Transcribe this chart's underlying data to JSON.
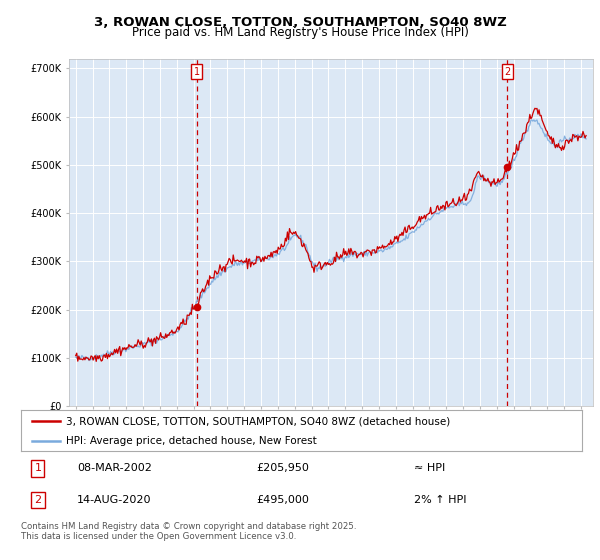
{
  "title_line1": "3, ROWAN CLOSE, TOTTON, SOUTHAMPTON, SO40 8WZ",
  "title_line2": "Price paid vs. HM Land Registry's House Price Index (HPI)",
  "ylim": [
    0,
    720000
  ],
  "yticks": [
    0,
    100000,
    200000,
    300000,
    400000,
    500000,
    600000,
    700000
  ],
  "ytick_labels": [
    "£0",
    "£100K",
    "£200K",
    "£300K",
    "£400K",
    "£500K",
    "£600K",
    "£700K"
  ],
  "xlim_start": 1994.6,
  "xlim_end": 2025.7,
  "hpi_color": "#7aaadd",
  "price_color": "#cc0000",
  "marker1_year": 2002.18,
  "marker1_value": 205950,
  "marker2_year": 2020.62,
  "marker2_value": 495000,
  "dashed_line_color": "#cc0000",
  "plot_bg_color": "#dce8f5",
  "grid_color": "#ffffff",
  "legend_label_price": "3, ROWAN CLOSE, TOTTON, SOUTHAMPTON, SO40 8WZ (detached house)",
  "legend_label_hpi": "HPI: Average price, detached house, New Forest",
  "annotation1_label": "1",
  "annotation1_date": "08-MAR-2002",
  "annotation1_price": "£205,950",
  "annotation1_note": "≈ HPI",
  "annotation2_label": "2",
  "annotation2_date": "14-AUG-2020",
  "annotation2_price": "£495,000",
  "annotation2_note": "2% ↑ HPI",
  "footer": "Contains HM Land Registry data © Crown copyright and database right 2025.\nThis data is licensed under the Open Government Licence v3.0.",
  "title_fontsize": 9.5,
  "subtitle_fontsize": 8.5,
  "tick_fontsize": 7,
  "legend_fontsize": 7.5
}
